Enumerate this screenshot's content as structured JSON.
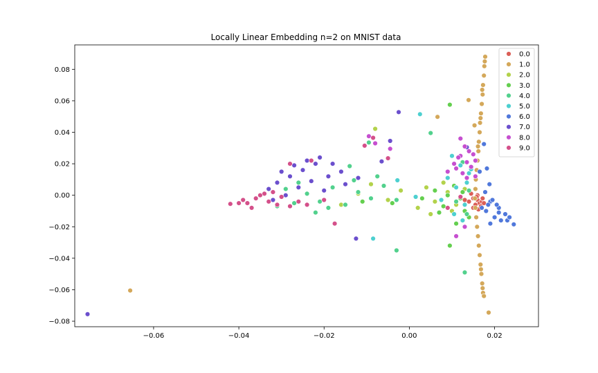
{
  "chart_data": {
    "type": "scatter",
    "title": "Locally Linear Embedding n=2 on MNIST data",
    "xlabel": "",
    "ylabel": "",
    "xlim": [
      -0.0785,
      0.0303
    ],
    "ylim": [
      -0.0835,
      0.0955
    ],
    "xticks": [
      -0.06,
      -0.04,
      -0.02,
      0.0,
      0.02
    ],
    "xtick_labels": [
      "−0.06",
      "−0.04",
      "−0.02",
      "0.00",
      "0.02"
    ],
    "yticks": [
      -0.08,
      -0.06,
      -0.04,
      -0.02,
      0.0,
      0.02,
      0.04,
      0.06,
      0.08
    ],
    "ytick_labels": [
      "−0.08",
      "−0.06",
      "−0.04",
      "−0.02",
      "0.00",
      "0.02",
      "0.04",
      "0.06",
      "0.08"
    ],
    "grid": false,
    "legend_position": "top-right",
    "series": [
      {
        "name": "0.0",
        "color": "#db5f57",
        "points": [
          [
            0.016,
            -0.003
          ],
          [
            0.0165,
            -0.005
          ],
          [
            0.015,
            -0.002
          ],
          [
            0.017,
            -0.004
          ],
          [
            0.0155,
            -0.006
          ],
          [
            0.016,
            0.0
          ],
          [
            0.014,
            -0.004
          ],
          [
            0.0168,
            -0.007
          ],
          [
            0.0158,
            -0.001
          ],
          [
            0.015,
            -0.008
          ],
          [
            0.0172,
            -0.002
          ],
          [
            0.013,
            -0.003
          ],
          [
            0.0162,
            -0.009
          ],
          [
            0.0145,
            0.001
          ],
          [
            0.0175,
            -0.005
          ]
        ]
      },
      {
        "name": "1.0",
        "color": "#d4a85a",
        "points": [
          [
            0.0178,
            0.088
          ],
          [
            0.0176,
            0.082
          ],
          [
            0.0175,
            0.076
          ],
          [
            0.0173,
            0.07
          ],
          [
            0.0172,
            0.064
          ],
          [
            0.017,
            0.058
          ],
          [
            0.0168,
            0.052
          ],
          [
            0.0166,
            0.046
          ],
          [
            0.0165,
            0.04
          ],
          [
            0.0163,
            0.034
          ],
          [
            0.0162,
            0.028
          ],
          [
            0.016,
            0.022
          ],
          [
            0.0158,
            0.016
          ],
          [
            0.0156,
            0.01
          ],
          [
            0.0155,
            0.004
          ],
          [
            0.0154,
            -0.002
          ],
          [
            0.0155,
            -0.008
          ],
          [
            0.0157,
            -0.014
          ],
          [
            0.0159,
            -0.02
          ],
          [
            0.0161,
            -0.026
          ],
          [
            0.0163,
            -0.032
          ],
          [
            0.0165,
            -0.038
          ],
          [
            0.0167,
            -0.044
          ],
          [
            0.0169,
            -0.05
          ],
          [
            0.0171,
            -0.056
          ],
          [
            0.0173,
            -0.062
          ],
          [
            0.0177,
            0.085
          ],
          [
            0.0171,
            0.067
          ],
          [
            0.0167,
            0.049
          ],
          [
            0.0161,
            0.031
          ],
          [
            0.0168,
            -0.047
          ],
          [
            0.0172,
            -0.059
          ],
          [
            0.0175,
            -0.064
          ],
          [
            0.0186,
            -0.0745
          ],
          [
            -0.0655,
            -0.0605
          ],
          [
            0.0139,
            0.0605
          ],
          [
            0.0153,
            0.0444
          ],
          [
            0.0066,
            0.0498
          ]
        ]
      },
      {
        "name": "2.0",
        "color": "#b3d24b",
        "points": [
          [
            -0.008,
            0.0422
          ],
          [
            0.004,
            0.005
          ],
          [
            0.006,
            -0.004
          ],
          [
            0.009,
            0.002
          ],
          [
            -0.005,
            -0.003
          ],
          [
            0.002,
            -0.008
          ],
          [
            0.011,
            -0.006
          ],
          [
            -0.012,
            0.001
          ],
          [
            0.008,
            0.008
          ],
          [
            -0.002,
            0.003
          ],
          [
            0.013,
            0.004
          ],
          [
            -0.016,
            -0.006
          ],
          [
            0.005,
            -0.012
          ],
          [
            -0.009,
            0.007
          ],
          [
            0.01,
            -0.01
          ]
        ]
      },
      {
        "name": "3.0",
        "color": "#64cf4f",
        "points": [
          [
            0.0095,
            0.0575
          ],
          [
            0.012,
            -0.002
          ],
          [
            0.008,
            -0.007
          ],
          [
            0.013,
            -0.01
          ],
          [
            0.006,
            0.003
          ],
          [
            0.0105,
            0.006
          ],
          [
            -0.004,
            -0.005
          ],
          [
            0.014,
            -0.014
          ],
          [
            0.009,
            0.0
          ],
          [
            -0.011,
            -0.004
          ],
          [
            0.003,
            -0.002
          ],
          [
            0.011,
            -0.018
          ],
          [
            0.0095,
            -0.032
          ],
          [
            0.007,
            -0.011
          ],
          [
            0.0125,
            0.002
          ]
        ]
      },
      {
        "name": "4.0",
        "color": "#52d18d",
        "points": [
          [
            -0.027,
            -0.005
          ],
          [
            -0.024,
            0.001
          ],
          [
            -0.021,
            -0.004
          ],
          [
            -0.018,
            0.005
          ],
          [
            -0.015,
            -0.006
          ],
          [
            -0.012,
            0.002
          ],
          [
            -0.009,
            -0.002
          ],
          [
            -0.006,
            0.006
          ],
          [
            -0.003,
            -0.003
          ],
          [
            -0.014,
            0.0185
          ],
          [
            -0.0095,
            0.0335
          ],
          [
            -0.013,
            0.0095
          ],
          [
            -0.003,
            -0.035
          ],
          [
            -0.022,
            -0.011
          ],
          [
            -0.029,
            0.004
          ],
          [
            0.005,
            0.0395
          ],
          [
            -0.0075,
            0.012
          ],
          [
            -0.019,
            -0.008
          ],
          [
            0.013,
            -0.049
          ],
          [
            0.011,
            -0.004
          ],
          [
            0.014,
            0.003
          ],
          [
            -0.031,
            -0.007
          ],
          [
            -0.026,
            0.008
          ],
          [
            0.0125,
            0.021
          ],
          [
            0.0135,
            -0.012
          ]
        ]
      },
      {
        "name": "5.0",
        "color": "#4dd0d0",
        "points": [
          [
            0.0025,
            0.0515
          ],
          [
            0.011,
            0.005
          ],
          [
            0.013,
            -0.006
          ],
          [
            0.009,
            0.011
          ],
          [
            0.014,
            0.014
          ],
          [
            0.0075,
            -0.003
          ],
          [
            0.012,
            0.019
          ],
          [
            0.0105,
            -0.012
          ],
          [
            0.0135,
            0.008
          ],
          [
            -0.0085,
            -0.0275
          ],
          [
            -0.0028,
            0.0095
          ],
          [
            0.0015,
            -0.001
          ],
          [
            0.01,
            0.025
          ],
          [
            0.0125,
            -0.016
          ],
          [
            0.0145,
            0.0165
          ]
        ]
      },
      {
        "name": "6.0",
        "color": "#5078db",
        "points": [
          [
            0.019,
            -0.004
          ],
          [
            0.021,
            -0.008
          ],
          [
            0.0225,
            -0.012
          ],
          [
            0.0245,
            -0.0185
          ],
          [
            0.018,
            -0.01
          ],
          [
            0.02,
            -0.014
          ],
          [
            0.023,
            -0.016
          ],
          [
            0.0185,
            -0.006
          ],
          [
            0.0195,
            -0.003
          ],
          [
            0.021,
            -0.011
          ],
          [
            0.017,
            -0.008
          ],
          [
            0.0215,
            -0.016
          ],
          [
            0.0178,
            0.002
          ],
          [
            0.0188,
            0.007
          ],
          [
            0.0175,
            0.0325
          ],
          [
            0.0165,
            0.015
          ],
          [
            0.0182,
            0.017
          ],
          [
            0.019,
            -0.018
          ],
          [
            0.0235,
            -0.014
          ],
          [
            0.0205,
            -0.006
          ]
        ]
      },
      {
        "name": "7.0",
        "color": "#6b4fcd",
        "points": [
          [
            -0.0755,
            -0.0755
          ],
          [
            -0.03,
            0.015
          ],
          [
            -0.027,
            0.019
          ],
          [
            -0.024,
            0.022
          ],
          [
            -0.021,
            0.024
          ],
          [
            -0.031,
            0.008
          ],
          [
            -0.028,
            0.012
          ],
          [
            -0.025,
            0.016
          ],
          [
            -0.022,
            0.02
          ],
          [
            -0.033,
            0.004
          ],
          [
            -0.019,
            0.012
          ],
          [
            -0.026,
            0.005
          ],
          [
            -0.029,
            0.0
          ],
          [
            -0.016,
            0.015
          ],
          [
            -0.012,
            0.011
          ],
          [
            -0.0025,
            0.0528
          ],
          [
            -0.0125,
            -0.0275
          ],
          [
            -0.0065,
            0.0215
          ],
          [
            -0.015,
            0.007
          ],
          [
            -0.023,
            0.009
          ],
          [
            0.0135,
            0.0305
          ],
          [
            -0.0045,
            0.0345
          ],
          [
            -0.02,
            0.003
          ],
          [
            -0.032,
            -0.003
          ],
          [
            -0.018,
            0.02
          ]
        ]
      },
      {
        "name": "8.0",
        "color": "#c64fd0",
        "points": [
          [
            0.012,
            0.025
          ],
          [
            0.0135,
            0.021
          ],
          [
            0.011,
            0.017
          ],
          [
            0.014,
            0.028
          ],
          [
            0.0125,
            0.014
          ],
          [
            0.0155,
            0.022
          ],
          [
            0.0105,
            0.02
          ],
          [
            0.013,
            0.031
          ],
          [
            0.0145,
            0.018
          ],
          [
            0.0115,
            0.024
          ],
          [
            0.0135,
            0.011
          ],
          [
            0.015,
            0.026
          ],
          [
            -0.0095,
            0.0375
          ],
          [
            -0.0045,
            0.0295
          ],
          [
            -0.008,
            0.033
          ],
          [
            0.013,
            -0.02
          ],
          [
            0.011,
            -0.026
          ],
          [
            0.012,
            0.036
          ],
          [
            0.0155,
            0.012
          ],
          [
            0.009,
            0.015
          ]
        ]
      },
      {
        "name": "9.0",
        "color": "#d4508a",
        "points": [
          [
            -0.042,
            -0.0055
          ],
          [
            -0.04,
            -0.005
          ],
          [
            -0.038,
            -0.005
          ],
          [
            -0.036,
            -0.002
          ],
          [
            -0.034,
            0.001
          ],
          [
            -0.037,
            -0.008
          ],
          [
            -0.033,
            -0.004
          ],
          [
            -0.035,
            0.0
          ],
          [
            -0.031,
            -0.006
          ],
          [
            -0.039,
            -0.003
          ],
          [
            -0.03,
            -0.001
          ],
          [
            -0.032,
            0.002
          ],
          [
            -0.028,
            -0.007
          ],
          [
            -0.026,
            -0.004
          ],
          [
            -0.024,
            -0.006
          ],
          [
            -0.02,
            -0.003
          ],
          [
            -0.0175,
            -0.018
          ],
          [
            -0.0085,
            0.0365
          ],
          [
            -0.0105,
            0.0315
          ],
          [
            -0.005,
            0.0235
          ],
          [
            -0.028,
            0.02
          ],
          [
            -0.023,
            0.022
          ],
          [
            0.009,
            -0.008
          ],
          [
            0.012,
            -0.001
          ]
        ]
      }
    ]
  }
}
